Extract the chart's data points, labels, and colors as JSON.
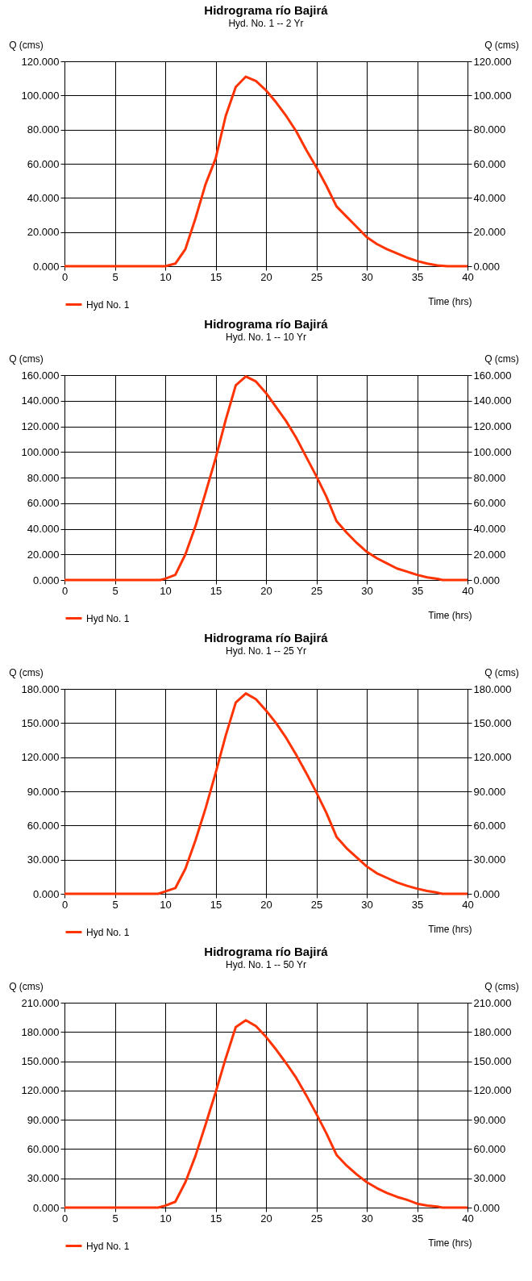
{
  "chart_data": [
    {
      "type": "line",
      "title": "Hidrograma río Bajirá",
      "subtitle": "Hyd. No. 1 -- 2 Yr",
      "xlabel": "Time (hrs)",
      "ylabel": "Q (cms)",
      "y2label": "Q (cms)",
      "legend": "bottom left",
      "grid": true,
      "marker": "none",
      "line_style": "solid",
      "xlim": [
        0,
        40
      ],
      "xticks": [
        0,
        5,
        10,
        15,
        20,
        25,
        30,
        35,
        40
      ],
      "ylim": [
        0,
        120
      ],
      "yticks": [
        {
          "value": 0,
          "label": "0.000"
        },
        {
          "value": 20,
          "label": "20.000"
        },
        {
          "value": 40,
          "label": "40.000"
        },
        {
          "value": 60,
          "label": "60.000"
        },
        {
          "value": 80,
          "label": "80.000"
        },
        {
          "value": 100,
          "label": "100.000"
        },
        {
          "value": 120,
          "label": "120.000"
        }
      ],
      "y2lim": [
        0,
        120
      ],
      "y2ticks": [
        {
          "value": 0,
          "label": "0.000"
        },
        {
          "value": 20,
          "label": "20.000"
        },
        {
          "value": 40,
          "label": "40.000"
        },
        {
          "value": 60,
          "label": "60.000"
        },
        {
          "value": 80,
          "label": "80.000"
        },
        {
          "value": 100,
          "label": "100.000"
        },
        {
          "value": 120,
          "label": "120.000"
        }
      ],
      "series": [
        {
          "name": "Hyd No. 1",
          "color": "#ff3300",
          "x": [
            0,
            5,
            10,
            11,
            12,
            13,
            14,
            15,
            16,
            17,
            18,
            19,
            20,
            21,
            22,
            23,
            24,
            25,
            26,
            27,
            28,
            29,
            30,
            31,
            32,
            33,
            34,
            35,
            36,
            37,
            38,
            40
          ],
          "values": [
            0,
            0,
            0,
            1.5,
            10,
            28,
            48,
            63,
            88,
            105,
            111,
            108.5,
            103,
            96,
            88,
            79,
            68,
            58,
            47,
            35,
            29,
            23,
            17,
            13,
            10,
            7.5,
            5,
            3,
            1.5,
            0.5,
            0,
            0
          ]
        }
      ]
    },
    {
      "type": "line",
      "title": "Hidrograma río Bajirá",
      "subtitle": "Hyd. No. 1 -- 10 Yr",
      "xlabel": "Time (hrs)",
      "ylabel": "Q (cms)",
      "y2label": "Q (cms)",
      "legend": "bottom left",
      "grid": true,
      "marker": "none",
      "line_style": "solid",
      "xlim": [
        0,
        40
      ],
      "xticks": [
        0,
        5,
        10,
        15,
        20,
        25,
        30,
        35,
        40
      ],
      "ylim": [
        0,
        160
      ],
      "yticks": [
        {
          "value": 0,
          "label": "0.000"
        },
        {
          "value": 20,
          "label": "20.000"
        },
        {
          "value": 40,
          "label": "40.000"
        },
        {
          "value": 60,
          "label": "60.000"
        },
        {
          "value": 80,
          "label": "80.000"
        },
        {
          "value": 100,
          "label": "100.000"
        },
        {
          "value": 120,
          "label": "120.000"
        },
        {
          "value": 140,
          "label": "140.000"
        },
        {
          "value": 160,
          "label": "160.000"
        }
      ],
      "y2lim": [
        0,
        160
      ],
      "y2ticks": [
        {
          "value": 0,
          "label": "0.000"
        },
        {
          "value": 20,
          "label": "20.000"
        },
        {
          "value": 40,
          "label": "40.000"
        },
        {
          "value": 60,
          "label": "60.000"
        },
        {
          "value": 80,
          "label": "80.000"
        },
        {
          "value": 100,
          "label": "100.000"
        },
        {
          "value": 120,
          "label": "120.000"
        },
        {
          "value": 140,
          "label": "140.000"
        },
        {
          "value": 160,
          "label": "160.000"
        }
      ],
      "series": [
        {
          "name": "Hyd No. 1",
          "color": "#ff3300",
          "x": [
            0,
            5,
            9.5,
            10,
            11,
            12,
            13,
            14,
            15,
            16,
            17,
            18,
            19,
            20,
            21,
            22,
            23,
            24,
            25,
            26,
            27,
            28,
            29,
            30,
            31,
            32,
            33,
            34,
            35,
            36,
            37,
            37.5,
            40
          ],
          "values": [
            0,
            0,
            0,
            1,
            4,
            20,
            42,
            68,
            95,
            125,
            152,
            159,
            155,
            146,
            135,
            124,
            111,
            96,
            81,
            65,
            46,
            37,
            29,
            22,
            17,
            13,
            9,
            6.5,
            4,
            2,
            1,
            0,
            0
          ]
        }
      ]
    },
    {
      "type": "line",
      "title": "Hidrograma río Bajirá",
      "subtitle": "Hyd. No. 1 -- 25 Yr",
      "xlabel": "Time (hrs)",
      "ylabel": "Q (cms)",
      "y2label": "Q (cms)",
      "legend": "bottom left",
      "grid": true,
      "marker": "none",
      "line_style": "solid",
      "xlim": [
        0,
        40
      ],
      "xticks": [
        0,
        5,
        10,
        15,
        20,
        25,
        30,
        35,
        40
      ],
      "ylim": [
        0,
        180
      ],
      "yticks": [
        {
          "value": 0,
          "label": "0.000"
        },
        {
          "value": 30,
          "label": "30.000"
        },
        {
          "value": 60,
          "label": "60.000"
        },
        {
          "value": 90,
          "label": "90.000"
        },
        {
          "value": 120,
          "label": "120.000"
        },
        {
          "value": 150,
          "label": "150.000"
        },
        {
          "value": 180,
          "label": "180.000"
        }
      ],
      "y2lim": [
        0,
        180
      ],
      "y2ticks": [
        {
          "value": 0,
          "label": "0.000"
        },
        {
          "value": 30,
          "label": "30.000"
        },
        {
          "value": 60,
          "label": "60.000"
        },
        {
          "value": 90,
          "label": "90.000"
        },
        {
          "value": 120,
          "label": "120.000"
        },
        {
          "value": 150,
          "label": "150.000"
        },
        {
          "value": 180,
          "label": "180.000"
        }
      ],
      "series": [
        {
          "name": "Hyd No. 1",
          "color": "#ff3300",
          "x": [
            0,
            5,
            9.3,
            10,
            11,
            12,
            13,
            14,
            15,
            16,
            17,
            18,
            19,
            20,
            21,
            22,
            23,
            24,
            25,
            26,
            27,
            28,
            29,
            30,
            31,
            32,
            33,
            34,
            35,
            36,
            37,
            37.5,
            40
          ],
          "values": [
            0,
            0,
            0,
            2,
            5,
            22,
            47,
            75,
            106,
            139,
            168,
            176,
            171,
            161,
            150,
            137,
            122,
            106,
            89,
            71,
            50,
            40,
            32,
            24,
            18,
            14,
            10,
            7,
            4.5,
            2.5,
            1,
            0,
            0
          ]
        }
      ]
    },
    {
      "type": "line",
      "title": "Hidrograma río Bajirá",
      "subtitle": "Hyd. No. 1 -- 50 Yr",
      "xlabel": "Time (hrs)",
      "ylabel": "Q (cms)",
      "y2label": "Q (cms)",
      "legend": "bottom left",
      "grid": true,
      "marker": "none",
      "line_style": "solid",
      "xlim": [
        0,
        40
      ],
      "xticks": [
        0,
        5,
        10,
        15,
        20,
        25,
        30,
        35,
        40
      ],
      "ylim": [
        0,
        210
      ],
      "yticks": [
        {
          "value": 0,
          "label": "0.000"
        },
        {
          "value": 30,
          "label": "30.000"
        },
        {
          "value": 60,
          "label": "60.000"
        },
        {
          "value": 90,
          "label": "90.000"
        },
        {
          "value": 120,
          "label": "120.000"
        },
        {
          "value": 150,
          "label": "150.000"
        },
        {
          "value": 180,
          "label": "180.000"
        },
        {
          "value": 210,
          "label": "210.000"
        }
      ],
      "y2lim": [
        0,
        210
      ],
      "y2ticks": [
        {
          "value": 0,
          "label": "0.000"
        },
        {
          "value": 30,
          "label": "30.000"
        },
        {
          "value": 60,
          "label": "60.000"
        },
        {
          "value": 90,
          "label": "90.000"
        },
        {
          "value": 120,
          "label": "120.000"
        },
        {
          "value": 150,
          "label": "150.000"
        },
        {
          "value": 180,
          "label": "180.000"
        },
        {
          "value": 210,
          "label": "210.000"
        }
      ],
      "series": [
        {
          "name": "Hyd No. 1",
          "color": "#ff3300",
          "x": [
            0,
            5,
            9.3,
            10,
            11,
            12,
            13,
            14,
            15,
            16,
            17,
            18,
            19,
            20,
            21,
            22,
            23,
            24,
            25,
            26,
            27,
            28,
            29,
            30,
            31,
            32,
            33,
            34,
            35,
            36,
            37,
            37.5,
            40
          ],
          "values": [
            0,
            0,
            0,
            2,
            6,
            26,
            53,
            85,
            118,
            153,
            185,
            192,
            186,
            175,
            162,
            148,
            133,
            115,
            96,
            76,
            54,
            43,
            34,
            26,
            20,
            15,
            11,
            8,
            4,
            2,
            1,
            0,
            0
          ]
        }
      ]
    }
  ]
}
